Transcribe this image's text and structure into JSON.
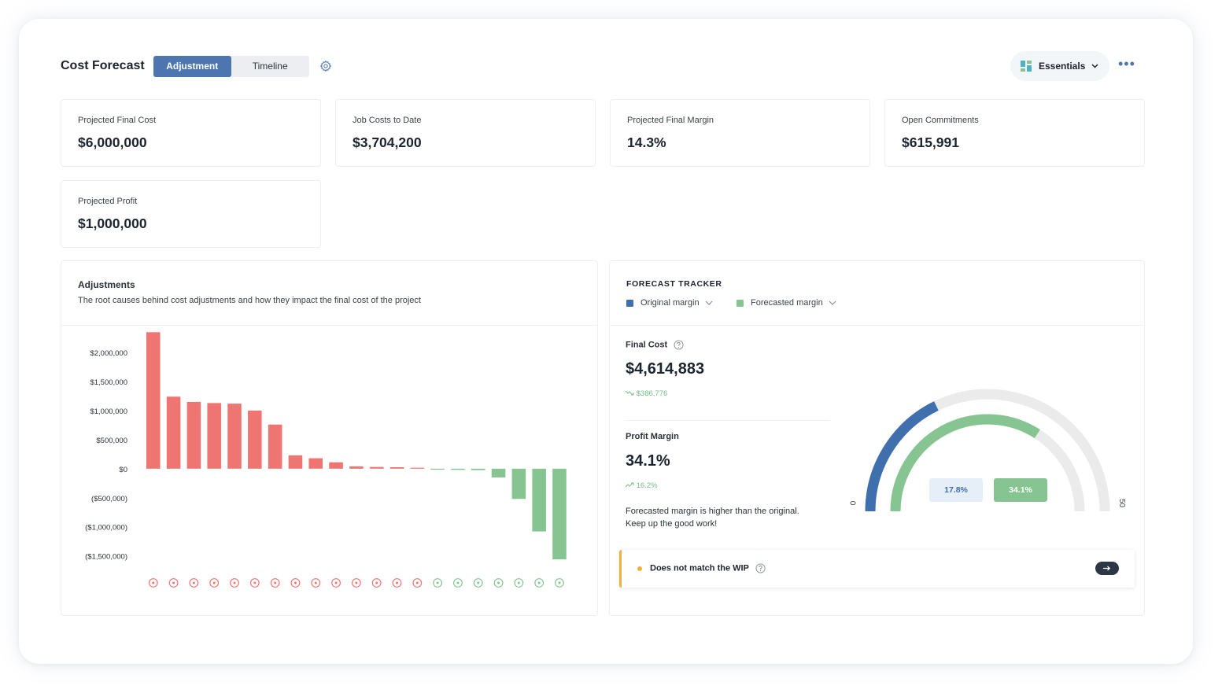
{
  "header": {
    "title": "Cost Forecast",
    "tabs": [
      {
        "label": "Adjustment",
        "active": true
      },
      {
        "label": "Timeline",
        "active": false
      }
    ],
    "settings_icon": "gear-icon",
    "view_selector": {
      "label": "Essentials",
      "icon": "dashboard-grid-icon"
    },
    "more_icon": "more-horizontal-icon"
  },
  "kpis": [
    {
      "label": "Projected Final Cost",
      "value": "$6,000,000"
    },
    {
      "label": "Job Costs to Date",
      "value": "$3,704,200"
    },
    {
      "label": "Projected Final Margin",
      "value": "14.3%"
    },
    {
      "label": "Open Commitments",
      "value": "$615,991"
    },
    {
      "label": "Projected Profit",
      "value": "$1,000,000"
    }
  ],
  "adjustments": {
    "title": "Adjustments",
    "subtitle": "The root causes behind cost adjustments and how they impact the final cost of the project",
    "category_icons": [
      "alert-circle-icon",
      "no-entry-icon",
      "expand-icon",
      "tools-icon",
      "traffic-cone-icon",
      "money-bag-icon",
      "question-circle-icon",
      "cloud-rain-icon",
      "chat-icon",
      "exchange-icon",
      "grid-icon",
      "target-icon",
      "cancel-circle-icon",
      "tools-icon",
      "gauge-icon",
      "tag-icon",
      "money-bag-icon",
      "download-icon",
      "grid-icon",
      "alert-circle-icon",
      "diamond-icon"
    ]
  },
  "chart_data": {
    "type": "bar",
    "ylim": [
      -1600000,
      2300000
    ],
    "yticks": [
      {
        "value": 2000000,
        "label": "$2,000,000"
      },
      {
        "value": 1500000,
        "label": "$1,500,000"
      },
      {
        "value": 1000000,
        "label": "$1,000,000"
      },
      {
        "value": 500000,
        "label": "$500,000"
      },
      {
        "value": 0,
        "label": "$0"
      },
      {
        "value": -500000,
        "label": "($500,000)"
      },
      {
        "value": -1000000,
        "label": "($1,000,000)"
      },
      {
        "value": -1500000,
        "label": "($1,500,000)"
      }
    ],
    "values": [
      2350000,
      1240000,
      1150000,
      1130000,
      1120000,
      1000000,
      760000,
      230000,
      180000,
      110000,
      40000,
      30000,
      25000,
      5000,
      -15000,
      -20000,
      -25000,
      -150000,
      -520000,
      -1080000,
      -1560000
    ],
    "positive_color": "#ef7572",
    "negative_color": "#86c591"
  },
  "forecast": {
    "title": "FORECAST TRACKER",
    "legend": [
      {
        "label": "Original margin",
        "color": "#3f6fad"
      },
      {
        "label": "Forecasted margin",
        "color": "#86c591"
      }
    ],
    "final_cost": {
      "label": "Final Cost",
      "value": "$4,614,883",
      "delta": "$386,776"
    },
    "profit_margin": {
      "label": "Profit Margin",
      "value": "34.1%",
      "delta": "16.2%"
    },
    "note_line1": "Forecasted margin is higher than the original.",
    "note_line2": "Keep up the good work!",
    "gauge": {
      "min": 0,
      "max": 50,
      "min_label": "0",
      "max_label": "50",
      "original": 17.8,
      "original_label": "17.8%",
      "forecast": 34.1,
      "forecast_label": "34.1%"
    },
    "wip": {
      "label": "Does not match the WIP"
    }
  }
}
